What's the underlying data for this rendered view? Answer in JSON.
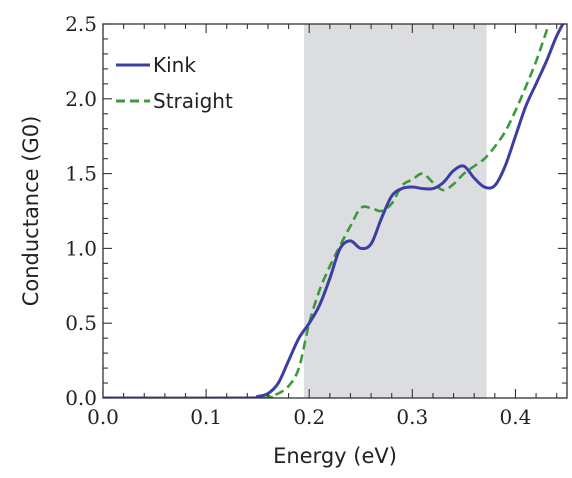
{
  "chart_data": {
    "type": "line",
    "xlabel": "Energy (eV)",
    "ylabel": "Conductance (G0)",
    "xlim": [
      0.0,
      0.45
    ],
    "ylim": [
      0.0,
      2.5
    ],
    "x_ticks": [
      "0.0",
      "0.1",
      "0.2",
      "0.3",
      "0.4"
    ],
    "y_ticks": [
      "0.0",
      "0.5",
      "1.0",
      "1.5",
      "2.0",
      "2.5"
    ],
    "grid": false,
    "legend_position": "top-left",
    "shaded_region": {
      "x_start": 0.195,
      "x_end": 0.372,
      "color": "#dcdde0"
    },
    "series": [
      {
        "name": "Kink",
        "style": "solid",
        "color": "#3b3fa3",
        "x": [
          0.0,
          0.14,
          0.15,
          0.16,
          0.17,
          0.18,
          0.19,
          0.2,
          0.21,
          0.22,
          0.23,
          0.24,
          0.25,
          0.26,
          0.27,
          0.28,
          0.29,
          0.3,
          0.31,
          0.32,
          0.33,
          0.34,
          0.35,
          0.36,
          0.37,
          0.38,
          0.39,
          0.4,
          0.41,
          0.42,
          0.43,
          0.44,
          0.45
        ],
        "y": [
          0.0,
          0.0,
          0.01,
          0.03,
          0.1,
          0.25,
          0.4,
          0.5,
          0.62,
          0.8,
          1.0,
          1.05,
          1.0,
          1.03,
          1.2,
          1.35,
          1.4,
          1.41,
          1.4,
          1.4,
          1.44,
          1.52,
          1.55,
          1.47,
          1.41,
          1.42,
          1.55,
          1.75,
          1.95,
          2.1,
          2.25,
          2.42,
          2.55
        ]
      },
      {
        "name": "Straight",
        "style": "dashed",
        "color": "#3b9a3b",
        "x": [
          0.0,
          0.15,
          0.16,
          0.17,
          0.18,
          0.19,
          0.2,
          0.21,
          0.22,
          0.23,
          0.24,
          0.25,
          0.26,
          0.27,
          0.28,
          0.29,
          0.3,
          0.31,
          0.32,
          0.33,
          0.34,
          0.35,
          0.36,
          0.37,
          0.38,
          0.39,
          0.4,
          0.41,
          0.42,
          0.43,
          0.44,
          0.45
        ],
        "y": [
          0.0,
          0.0,
          0.01,
          0.03,
          0.08,
          0.2,
          0.5,
          0.72,
          0.88,
          1.02,
          1.15,
          1.27,
          1.27,
          1.25,
          1.3,
          1.42,
          1.46,
          1.5,
          1.44,
          1.39,
          1.43,
          1.5,
          1.55,
          1.6,
          1.68,
          1.78,
          1.92,
          2.08,
          2.25,
          2.45,
          2.65,
          2.9
        ]
      }
    ]
  }
}
